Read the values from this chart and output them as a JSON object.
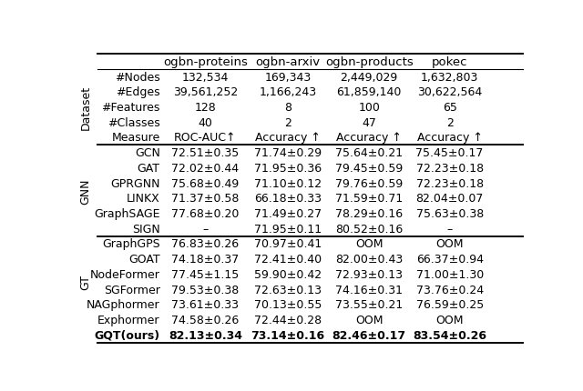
{
  "col_headers": [
    "",
    "ogbn-proteins",
    "ogbn-arxiv",
    "ogbn-products",
    "pokec"
  ],
  "dataset_rows": [
    [
      "#Nodes",
      "132,534",
      "169,343",
      "2,449,029",
      "1,632,803"
    ],
    [
      "#Edges",
      "39,561,252",
      "1,166,243",
      "61,859,140",
      "30,622,564"
    ],
    [
      "#Features",
      "128",
      "8",
      "100",
      "65"
    ],
    [
      "#Classes",
      "40",
      "2",
      "47",
      "2"
    ],
    [
      "Measure",
      "ROC-AUC↑",
      "Accuracy ↑",
      "Accuracy ↑",
      "Accuracy ↑"
    ]
  ],
  "gnn_rows": [
    [
      "GCN",
      "72.51±0.35",
      "71.74±0.29",
      "75.64±0.21",
      "75.45±0.17"
    ],
    [
      "GAT",
      "72.02±0.44",
      "71.95±0.36",
      "79.45±0.59",
      "72.23±0.18"
    ],
    [
      "GPRGNN",
      "75.68±0.49",
      "71.10±0.12",
      "79.76±0.59",
      "72.23±0.18"
    ],
    [
      "LINKX",
      "71.37±0.58",
      "66.18±0.33",
      "71.59±0.71",
      "82.04±0.07"
    ],
    [
      "GraphSAGE",
      "77.68±0.20",
      "71.49±0.27",
      "78.29±0.16",
      "75.63±0.38"
    ],
    [
      "SIGN",
      "–",
      "71.95±0.11",
      "80.52±0.16",
      "–"
    ]
  ],
  "gt_rows": [
    [
      "GraphGPS",
      "76.83±0.26",
      "70.97±0.41",
      "OOM",
      "OOM"
    ],
    [
      "GOAT",
      "74.18±0.37",
      "72.41±0.40",
      "82.00±0.43",
      "66.37±0.94"
    ],
    [
      "NodeFormer",
      "77.45±1.15",
      "59.90±0.42",
      "72.93±0.13",
      "71.00±1.30"
    ],
    [
      "SGFormer",
      "79.53±0.38",
      "72.63±0.13",
      "74.16±0.31",
      "73.76±0.24"
    ],
    [
      "NAGphormer",
      "73.61±0.33",
      "70.13±0.55",
      "73.55±0.21",
      "76.59±0.25"
    ],
    [
      "Exphormer",
      "74.58±0.26",
      "72.44±0.28",
      "OOM",
      "OOM"
    ]
  ],
  "gqt_row": [
    "GQT(ours)",
    "82.13±0.34",
    "73.14±0.16",
    "82.46±0.17",
    "83.54±0.26"
  ],
  "section_labels": [
    "Dataset",
    "GNN",
    "GT"
  ],
  "bg_color": "#ffffff",
  "text_color": "#000000",
  "line_color": "#000000",
  "fontsize_header": 9.5,
  "fontsize_body": 9.0,
  "fontsize_section": 9.0
}
